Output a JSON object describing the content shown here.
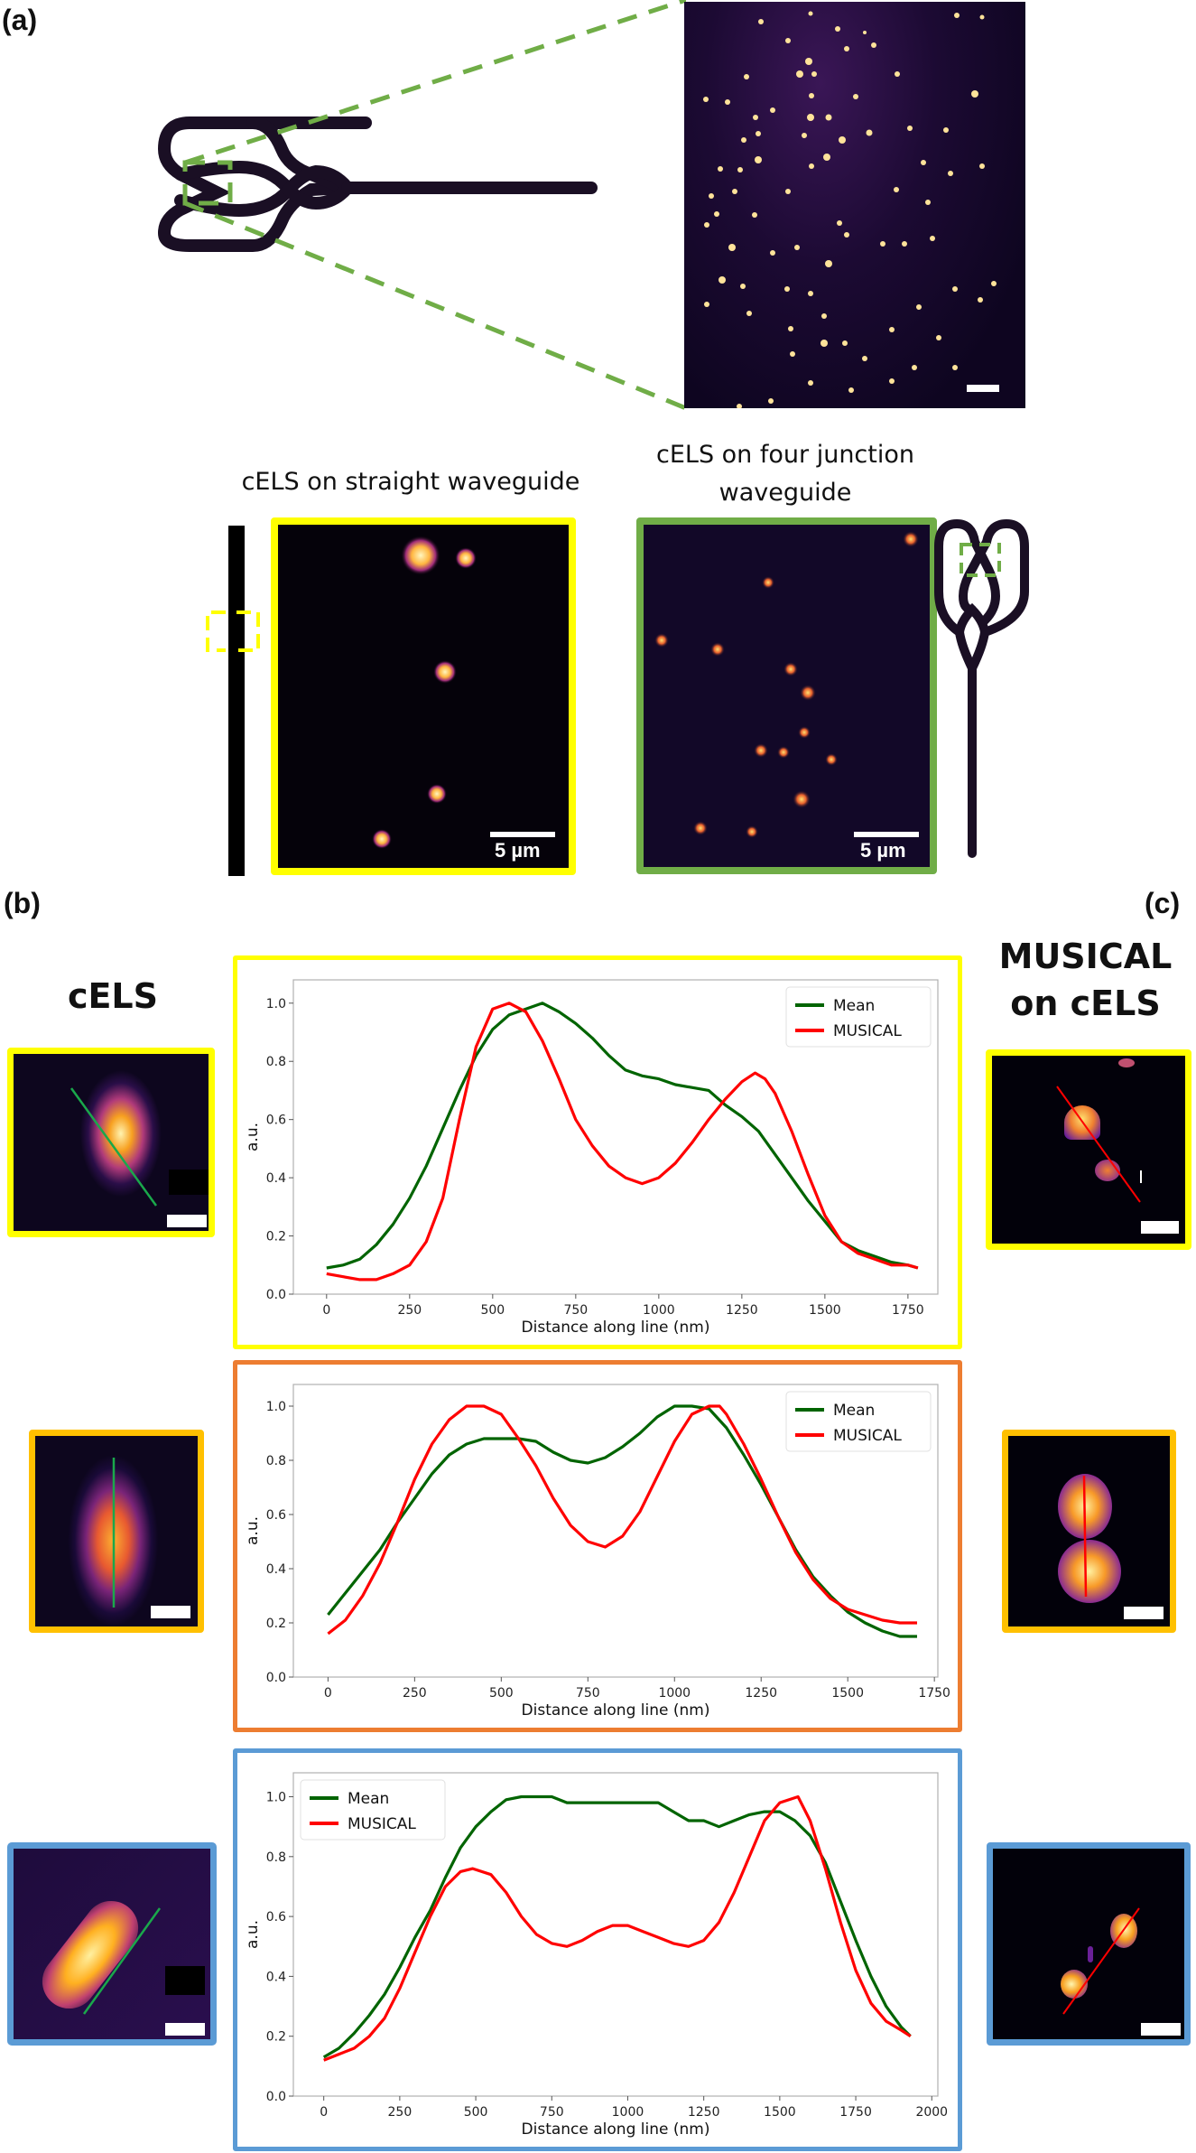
{
  "labels": {
    "a": "(a)",
    "b": "(b)",
    "c": "(c)"
  },
  "panel_a": {
    "straight_title": "cELS on straight waveguide",
    "junction_title_line1": "cELS on four junction",
    "junction_title_line2": "waveguide",
    "scalebar_straight": "5 µm",
    "scalebar_junction": "5 µm",
    "colors": {
      "yellow": "#ffff00",
      "green": "#70ad47",
      "waveguide": "#1a0f24"
    }
  },
  "panel_b": {
    "title": "cELS"
  },
  "panel_c": {
    "title_line1": "MUSICAL",
    "title_line2": "on cELS"
  },
  "frame_colors": [
    "#ffff00",
    "#ed7d31",
    "#5b9bd5"
  ],
  "thumb_frame_colors": [
    "#ffff00",
    "#ffc000",
    "#5b9bd5"
  ],
  "chart_data": [
    {
      "type": "line",
      "title": "",
      "xlabel": "Distance along line (nm)",
      "ylabel": "a.u.",
      "xlim": [
        -100,
        1840
      ],
      "ylim": [
        0,
        1.08
      ],
      "xticks": [
        0,
        250,
        500,
        750,
        1000,
        1250,
        1500,
        1750
      ],
      "yticks": [
        0.0,
        0.2,
        0.4,
        0.6,
        0.8,
        1.0
      ],
      "legend_position": "upper right",
      "grid": false,
      "series": [
        {
          "name": "Mean",
          "color": "#006400",
          "x": [
            0,
            50,
            100,
            150,
            200,
            250,
            300,
            350,
            400,
            450,
            500,
            550,
            600,
            650,
            700,
            750,
            800,
            850,
            900,
            950,
            1000,
            1050,
            1100,
            1150,
            1200,
            1250,
            1300,
            1350,
            1400,
            1450,
            1500,
            1550,
            1600,
            1650,
            1700,
            1750,
            1780
          ],
          "y": [
            0.09,
            0.1,
            0.12,
            0.17,
            0.24,
            0.33,
            0.44,
            0.57,
            0.7,
            0.82,
            0.91,
            0.96,
            0.98,
            1.0,
            0.97,
            0.93,
            0.88,
            0.82,
            0.77,
            0.75,
            0.74,
            0.72,
            0.71,
            0.7,
            0.65,
            0.61,
            0.56,
            0.48,
            0.4,
            0.32,
            0.25,
            0.18,
            0.15,
            0.13,
            0.11,
            0.1,
            0.09
          ]
        },
        {
          "name": "MUSICAL",
          "color": "#ff0000",
          "x": [
            0,
            50,
            100,
            150,
            200,
            250,
            300,
            350,
            400,
            450,
            500,
            550,
            600,
            650,
            700,
            750,
            800,
            850,
            900,
            950,
            1000,
            1050,
            1100,
            1150,
            1200,
            1250,
            1290,
            1320,
            1350,
            1400,
            1450,
            1500,
            1550,
            1600,
            1650,
            1700,
            1750,
            1780
          ],
          "y": [
            0.07,
            0.06,
            0.05,
            0.05,
            0.07,
            0.1,
            0.18,
            0.33,
            0.6,
            0.85,
            0.98,
            1.0,
            0.97,
            0.87,
            0.74,
            0.6,
            0.51,
            0.44,
            0.4,
            0.38,
            0.4,
            0.45,
            0.52,
            0.6,
            0.67,
            0.73,
            0.76,
            0.74,
            0.69,
            0.56,
            0.41,
            0.27,
            0.18,
            0.14,
            0.12,
            0.1,
            0.1,
            0.09
          ]
        }
      ]
    },
    {
      "type": "line",
      "title": "",
      "xlabel": "Distance along line (nm)",
      "ylabel": "a.u.",
      "xlim": [
        -100,
        1760
      ],
      "ylim": [
        0,
        1.08
      ],
      "xticks": [
        0,
        250,
        500,
        750,
        1000,
        1250,
        1500,
        1750
      ],
      "yticks": [
        0.0,
        0.2,
        0.4,
        0.6,
        0.8,
        1.0
      ],
      "legend_position": "upper right",
      "grid": false,
      "series": [
        {
          "name": "Mean",
          "color": "#006400",
          "x": [
            0,
            50,
            100,
            150,
            200,
            250,
            300,
            350,
            400,
            450,
            500,
            550,
            600,
            650,
            700,
            750,
            800,
            850,
            900,
            950,
            1000,
            1050,
            1100,
            1150,
            1200,
            1250,
            1300,
            1350,
            1400,
            1450,
            1500,
            1550,
            1600,
            1650,
            1700
          ],
          "y": [
            0.23,
            0.31,
            0.39,
            0.47,
            0.57,
            0.66,
            0.75,
            0.82,
            0.86,
            0.88,
            0.88,
            0.88,
            0.87,
            0.83,
            0.8,
            0.79,
            0.81,
            0.85,
            0.9,
            0.96,
            1.0,
            1.0,
            0.99,
            0.92,
            0.82,
            0.71,
            0.59,
            0.47,
            0.37,
            0.3,
            0.24,
            0.2,
            0.17,
            0.15,
            0.15
          ]
        },
        {
          "name": "MUSICAL",
          "color": "#ff0000",
          "x": [
            0,
            50,
            100,
            150,
            200,
            250,
            300,
            350,
            400,
            450,
            500,
            550,
            600,
            650,
            700,
            750,
            800,
            850,
            900,
            950,
            1000,
            1050,
            1100,
            1130,
            1150,
            1200,
            1250,
            1300,
            1350,
            1400,
            1450,
            1500,
            1550,
            1600,
            1650,
            1700
          ],
          "y": [
            0.16,
            0.21,
            0.3,
            0.42,
            0.57,
            0.73,
            0.86,
            0.95,
            1.0,
            1.0,
            0.97,
            0.88,
            0.78,
            0.66,
            0.56,
            0.5,
            0.48,
            0.52,
            0.61,
            0.74,
            0.87,
            0.97,
            1.0,
            1.0,
            0.97,
            0.86,
            0.73,
            0.59,
            0.46,
            0.36,
            0.29,
            0.25,
            0.23,
            0.21,
            0.2,
            0.2
          ]
        }
      ]
    },
    {
      "type": "line",
      "title": "",
      "xlabel": "Distance along line (nm)",
      "ylabel": "a.u.",
      "xlim": [
        -100,
        2020
      ],
      "ylim": [
        0,
        1.08
      ],
      "xticks": [
        0,
        250,
        500,
        750,
        1000,
        1250,
        1500,
        1750,
        2000
      ],
      "yticks": [
        0.0,
        0.2,
        0.4,
        0.6,
        0.8,
        1.0
      ],
      "legend_position": "upper left",
      "grid": false,
      "series": [
        {
          "name": "Mean",
          "color": "#006400",
          "x": [
            0,
            50,
            100,
            150,
            200,
            250,
            300,
            350,
            400,
            450,
            500,
            550,
            600,
            650,
            700,
            750,
            800,
            900,
            1000,
            1100,
            1150,
            1200,
            1250,
            1300,
            1350,
            1400,
            1450,
            1500,
            1550,
            1600,
            1650,
            1700,
            1750,
            1800,
            1850,
            1900,
            1930
          ],
          "y": [
            0.13,
            0.16,
            0.21,
            0.27,
            0.34,
            0.43,
            0.53,
            0.62,
            0.73,
            0.83,
            0.9,
            0.95,
            0.99,
            1.0,
            1.0,
            1.0,
            0.98,
            0.98,
            0.98,
            0.98,
            0.95,
            0.92,
            0.92,
            0.9,
            0.92,
            0.94,
            0.95,
            0.95,
            0.92,
            0.87,
            0.78,
            0.65,
            0.52,
            0.4,
            0.3,
            0.23,
            0.2
          ]
        },
        {
          "name": "MUSICAL",
          "color": "#ff0000",
          "x": [
            0,
            50,
            100,
            150,
            200,
            250,
            300,
            350,
            400,
            450,
            490,
            550,
            600,
            650,
            700,
            750,
            800,
            850,
            900,
            950,
            1000,
            1050,
            1100,
            1150,
            1200,
            1250,
            1300,
            1350,
            1400,
            1450,
            1500,
            1560,
            1600,
            1650,
            1700,
            1750,
            1800,
            1850,
            1900,
            1930
          ],
          "y": [
            0.12,
            0.14,
            0.16,
            0.2,
            0.26,
            0.36,
            0.48,
            0.6,
            0.7,
            0.75,
            0.76,
            0.74,
            0.68,
            0.6,
            0.54,
            0.51,
            0.5,
            0.52,
            0.55,
            0.57,
            0.57,
            0.55,
            0.53,
            0.51,
            0.5,
            0.52,
            0.58,
            0.68,
            0.8,
            0.92,
            0.98,
            1.0,
            0.92,
            0.76,
            0.58,
            0.42,
            0.31,
            0.25,
            0.22,
            0.2
          ]
        }
      ]
    }
  ]
}
